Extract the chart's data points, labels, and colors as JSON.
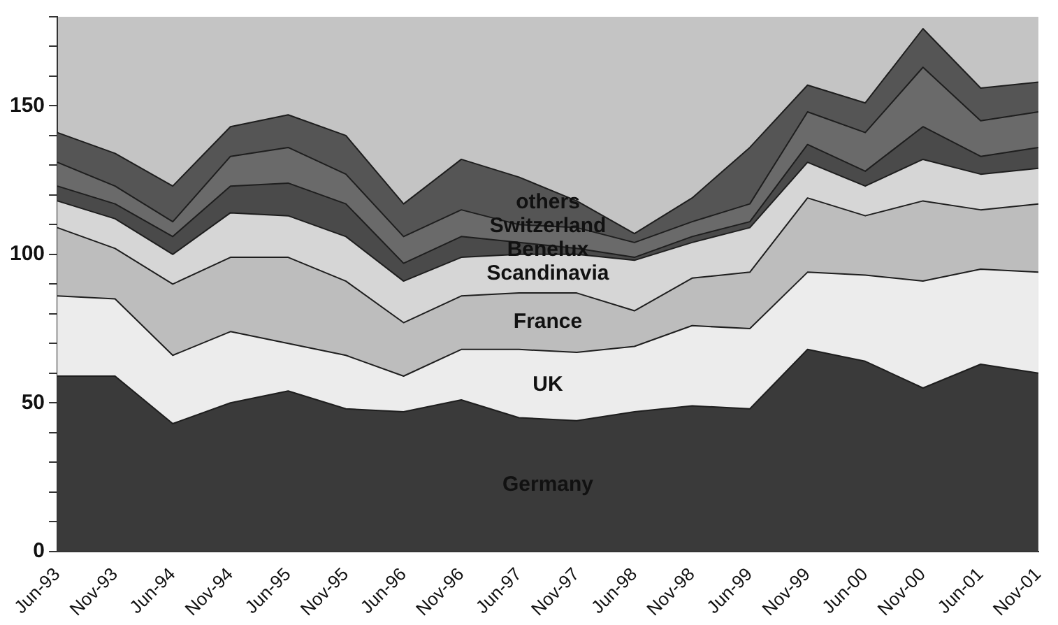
{
  "chart_data": {
    "type": "area",
    "stacked": true,
    "categories": [
      "Jun-93",
      "Nov-93",
      "Jun-94",
      "Nov-94",
      "Jun-95",
      "Nov-95",
      "Jun-96",
      "Nov-96",
      "Jun-97",
      "Nov-97",
      "Jun-98",
      "Nov-98",
      "Jun-99",
      "Nov-99",
      "Jun-00",
      "Nov-00",
      "Jun-01",
      "Nov-01"
    ],
    "series": [
      {
        "name": "Germany",
        "color": "#3a3a3a",
        "values": [
          59,
          59,
          43,
          50,
          54,
          48,
          47,
          51,
          45,
          44,
          47,
          49,
          48,
          68,
          64,
          55,
          63,
          60
        ]
      },
      {
        "name": "UK",
        "color": "#ececec",
        "values": [
          27,
          26,
          23,
          24,
          16,
          18,
          12,
          17,
          23,
          23,
          22,
          27,
          27,
          26,
          29,
          36,
          32,
          34
        ]
      },
      {
        "name": "France",
        "color": "#bdbdbd",
        "values": [
          23,
          17,
          24,
          25,
          29,
          25,
          18,
          18,
          19,
          20,
          12,
          16,
          19,
          25,
          20,
          27,
          20,
          23
        ]
      },
      {
        "name": "Scandinavia",
        "color": "#d6d6d6",
        "values": [
          9,
          10,
          10,
          15,
          14,
          15,
          14,
          13,
          13,
          13,
          17,
          12,
          15,
          12,
          10,
          14,
          12,
          12
        ]
      },
      {
        "name": "Benelux",
        "color": "#4a4a4a",
        "values": [
          5,
          5,
          6,
          9,
          11,
          11,
          6,
          7,
          4,
          2,
          1,
          2,
          2,
          6,
          5,
          11,
          6,
          7
        ]
      },
      {
        "name": "Switzerland",
        "color": "#6a6a6a",
        "values": [
          8,
          6,
          5,
          10,
          12,
          10,
          9,
          9,
          6,
          7,
          5,
          5,
          6,
          11,
          13,
          20,
          12,
          12
        ]
      },
      {
        "name": "others",
        "color": "#555555",
        "values": [
          10,
          11,
          12,
          10,
          11,
          13,
          11,
          17,
          16,
          9,
          3,
          8,
          19,
          9,
          10,
          13,
          11,
          10
        ]
      }
    ],
    "ylim": [
      0,
      180
    ],
    "yticks": [
      0,
      {
        "value": 10,
        "label": null
      },
      {
        "value": 20,
        "label": null
      },
      {
        "value": 30,
        "label": null
      },
      {
        "value": 40,
        "label": null
      },
      50,
      {
        "value": 60,
        "label": null
      },
      {
        "value": 70,
        "label": null
      },
      {
        "value": 80,
        "label": null
      },
      {
        "value": 90,
        "label": null
      },
      100,
      {
        "value": 110,
        "label": null
      },
      {
        "value": 120,
        "label": null
      },
      {
        "value": 130,
        "label": null
      },
      {
        "value": 140,
        "label": null
      },
      150,
      {
        "value": 160,
        "label": null
      },
      {
        "value": 170,
        "label": null
      },
      {
        "value": 180,
        "label": null
      }
    ],
    "grid": false,
    "legend": false
  }
}
